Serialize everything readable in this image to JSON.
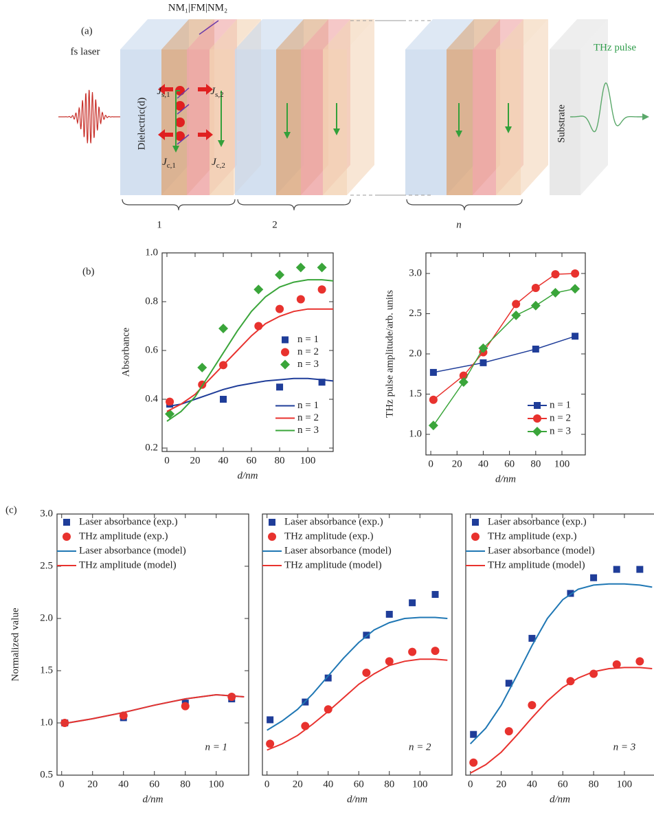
{
  "diagram": {
    "panel_label": "(a)",
    "structure_label": "NM₁|FM|NM₂",
    "laser_label": "fs laser",
    "dielectric_label": "Dielectric(d)",
    "currents": [
      {
        "main": "J",
        "sub": "s,1"
      },
      {
        "main": "J",
        "sub": "s,2"
      },
      {
        "main": "J",
        "sub": "c,1"
      },
      {
        "main": "J",
        "sub": "c,2"
      }
    ],
    "thz_label": "THz pulse",
    "substrate_label": "Substrate",
    "groups": [
      "1",
      "2",
      "n"
    ]
  },
  "panel_b_label": "(b)",
  "panel_c_label": "(c)",
  "chart_data": [
    {
      "type": "scatter",
      "xlabel": "d/nm",
      "ylabel": "Absorbance",
      "xlim": [
        -3.4,
        118
      ],
      "ylim": [
        0.186,
        1.0
      ],
      "xticks": [
        0,
        20,
        40,
        60,
        80,
        100
      ],
      "yticks": [
        0.2,
        0.4,
        0.6,
        0.8,
        {
          "value": 1,
          "label": "1.0"
        }
      ],
      "legend": "center right",
      "series": [
        {
          "name": "n = 1",
          "color": "#1f3d99",
          "marker": "square",
          "x": [
            2,
            40,
            80,
            110
          ],
          "values": [
            0.38,
            0.4,
            0.45,
            0.47
          ]
        },
        {
          "name": "n = 2",
          "color": "#e8322e",
          "marker": "circle",
          "x": [
            2,
            25,
            40,
            65,
            80,
            95,
            110
          ],
          "values": [
            0.39,
            0.46,
            0.54,
            0.7,
            0.77,
            0.81,
            0.85
          ]
        },
        {
          "name": "n = 3",
          "color": "#3aa53a",
          "marker": "diamond",
          "x": [
            2,
            25,
            40,
            65,
            80,
            95,
            110
          ],
          "values": [
            0.34,
            0.53,
            0.69,
            0.85,
            0.91,
            0.94,
            0.94
          ]
        },
        {
          "name": "n = 1",
          "color": "#1f3d99",
          "line": true,
          "x": [
            0,
            10,
            20,
            30,
            40,
            50,
            60,
            70,
            80,
            90,
            100,
            110,
            118
          ],
          "values": [
            0.37,
            0.38,
            0.4,
            0.42,
            0.44,
            0.455,
            0.465,
            0.475,
            0.48,
            0.485,
            0.485,
            0.48,
            0.475
          ]
        },
        {
          "name": "n = 2",
          "color": "#e8322e",
          "line": true,
          "x": [
            0,
            10,
            20,
            30,
            40,
            50,
            60,
            70,
            80,
            90,
            100,
            110,
            118
          ],
          "values": [
            0.35,
            0.38,
            0.42,
            0.48,
            0.54,
            0.6,
            0.66,
            0.71,
            0.74,
            0.76,
            0.77,
            0.77,
            0.77
          ]
        },
        {
          "name": "n = 3",
          "color": "#3aa53a",
          "line": true,
          "x": [
            0,
            10,
            20,
            30,
            40,
            50,
            60,
            70,
            80,
            90,
            100,
            110,
            118
          ],
          "values": [
            0.31,
            0.35,
            0.41,
            0.5,
            0.59,
            0.68,
            0.76,
            0.82,
            0.86,
            0.88,
            0.89,
            0.89,
            0.885
          ]
        }
      ]
    },
    {
      "type": "line",
      "xlabel": "d/nm",
      "ylabel": "THz pulse amplitude/arb. units",
      "xlim": [
        -3.7,
        117.8
      ],
      "ylim": [
        0.744,
        3.256
      ],
      "xticks": [
        0,
        20,
        40,
        60,
        80,
        100
      ],
      "yticks": [
        {
          "value": 1,
          "label": "1.0"
        },
        1.5,
        {
          "value": 2,
          "label": "2.0"
        },
        2.5,
        {
          "value": 3,
          "label": "3.0"
        }
      ],
      "legend": "lower right",
      "series": [
        {
          "name": "n = 1",
          "color": "#1f3d99",
          "marker": "square",
          "line": true,
          "x": [
            2,
            40,
            80,
            110
          ],
          "values": [
            1.77,
            1.89,
            2.06,
            2.22
          ]
        },
        {
          "name": "n = 2",
          "color": "#e8322e",
          "marker": "circle",
          "line": true,
          "x": [
            2,
            25,
            40,
            65,
            80,
            95,
            110
          ],
          "values": [
            1.43,
            1.73,
            2.02,
            2.62,
            2.82,
            2.99,
            3.0
          ]
        },
        {
          "name": "n = 3",
          "color": "#3aa53a",
          "marker": "diamond",
          "line": true,
          "x": [
            2,
            25,
            40,
            65,
            80,
            95,
            110
          ],
          "values": [
            1.11,
            1.65,
            2.07,
            2.48,
            2.6,
            2.76,
            2.81
          ]
        }
      ]
    },
    {
      "type": "scatter",
      "xlabel": "d/nm",
      "ylabel": "Normalized value",
      "annotation": "n = 1",
      "xlim": [
        -3,
        121
      ],
      "ylim": [
        0.5,
        3.0
      ],
      "xticks": [
        0,
        20,
        40,
        60,
        80,
        100
      ],
      "yticks": [
        0.5,
        {
          "value": 1,
          "label": "1.0"
        },
        1.5,
        {
          "value": 2,
          "label": "2.0"
        },
        2.5,
        {
          "value": 3,
          "label": "3.0"
        }
      ],
      "legend": "upper left",
      "series": [
        {
          "name": "Laser absorbance (exp.)",
          "color": "#1f3d99",
          "marker": "square",
          "x": [
            2,
            40,
            80,
            110
          ],
          "values": [
            1.0,
            1.05,
            1.19,
            1.23
          ]
        },
        {
          "name": "THz amplitude (exp.)",
          "color": "#e8322e",
          "marker": "circle",
          "x": [
            2,
            40,
            80,
            110
          ],
          "values": [
            1.0,
            1.07,
            1.16,
            1.25
          ]
        },
        {
          "name": "Laser absorbance (model)",
          "color": "#1f77b4",
          "line": true,
          "x": [
            0,
            20,
            40,
            60,
            80,
            100,
            118
          ],
          "values": [
            0.99,
            1.04,
            1.1,
            1.17,
            1.23,
            1.27,
            1.25
          ]
        },
        {
          "name": "THz amplitude (model)",
          "color": "#e8322e",
          "line": true,
          "x": [
            0,
            20,
            40,
            60,
            80,
            100,
            118
          ],
          "values": [
            0.99,
            1.04,
            1.1,
            1.17,
            1.23,
            1.27,
            1.25
          ]
        }
      ]
    },
    {
      "type": "scatter",
      "xlabel": "d/nm",
      "annotation": "n = 2",
      "xlim": [
        -3,
        121
      ],
      "ylim": [
        0.5,
        3.0
      ],
      "xticks": [
        0,
        20,
        40,
        60,
        80,
        100
      ],
      "legend": "upper left",
      "series": [
        {
          "name": "Laser absorbance (exp.)",
          "color": "#1f3d99",
          "marker": "square",
          "x": [
            2,
            25,
            40,
            65,
            80,
            95,
            110
          ],
          "values": [
            1.03,
            1.2,
            1.43,
            1.84,
            2.04,
            2.15,
            2.23
          ]
        },
        {
          "name": "THz amplitude (exp.)",
          "color": "#e8322e",
          "marker": "circle",
          "x": [
            2,
            25,
            40,
            65,
            80,
            95,
            110
          ],
          "values": [
            0.8,
            0.97,
            1.13,
            1.48,
            1.59,
            1.68,
            1.69
          ]
        },
        {
          "name": "Laser absorbance (model)",
          "color": "#1f77b4",
          "line": true,
          "x": [
            0,
            10,
            20,
            30,
            40,
            50,
            60,
            70,
            80,
            90,
            100,
            110,
            118
          ],
          "values": [
            0.93,
            1.02,
            1.13,
            1.28,
            1.45,
            1.62,
            1.77,
            1.89,
            1.96,
            2.0,
            2.01,
            2.01,
            2.0
          ]
        },
        {
          "name": "THz amplitude (model)",
          "color": "#e8322e",
          "line": true,
          "x": [
            0,
            10,
            20,
            30,
            40,
            50,
            60,
            70,
            80,
            90,
            100,
            110,
            118
          ],
          "values": [
            0.74,
            0.8,
            0.88,
            0.99,
            1.11,
            1.24,
            1.37,
            1.47,
            1.55,
            1.59,
            1.61,
            1.61,
            1.6
          ]
        }
      ]
    },
    {
      "type": "scatter",
      "xlabel": "d/nm",
      "annotation": "n = 3",
      "xlim": [
        -3,
        121
      ],
      "ylim": [
        0.5,
        3.0
      ],
      "xticks": [
        0,
        20,
        40,
        60,
        80,
        100
      ],
      "legend": "upper left",
      "series": [
        {
          "name": "Laser absorbance (exp.)",
          "color": "#1f3d99",
          "marker": "square",
          "x": [
            2,
            25,
            40,
            65,
            80,
            95,
            110
          ],
          "values": [
            0.89,
            1.38,
            1.81,
            2.24,
            2.39,
            2.47,
            2.47
          ]
        },
        {
          "name": "THz amplitude (exp.)",
          "color": "#e8322e",
          "marker": "circle",
          "x": [
            2,
            25,
            40,
            65,
            80,
            95,
            110
          ],
          "values": [
            0.62,
            0.92,
            1.17,
            1.4,
            1.47,
            1.56,
            1.59
          ]
        },
        {
          "name": "Laser absorbance (model)",
          "color": "#1f77b4",
          "line": true,
          "x": [
            0,
            10,
            20,
            30,
            40,
            50,
            60,
            70,
            80,
            90,
            100,
            110,
            118
          ],
          "values": [
            0.8,
            0.95,
            1.17,
            1.45,
            1.74,
            2.0,
            2.18,
            2.28,
            2.32,
            2.33,
            2.33,
            2.32,
            2.3
          ]
        },
        {
          "name": "THz amplitude (model)",
          "color": "#e8322e",
          "line": true,
          "x": [
            0,
            10,
            20,
            30,
            40,
            50,
            60,
            70,
            80,
            90,
            100,
            110,
            118
          ],
          "values": [
            0.52,
            0.6,
            0.72,
            0.88,
            1.05,
            1.21,
            1.34,
            1.43,
            1.49,
            1.52,
            1.53,
            1.53,
            1.52
          ]
        }
      ]
    }
  ]
}
